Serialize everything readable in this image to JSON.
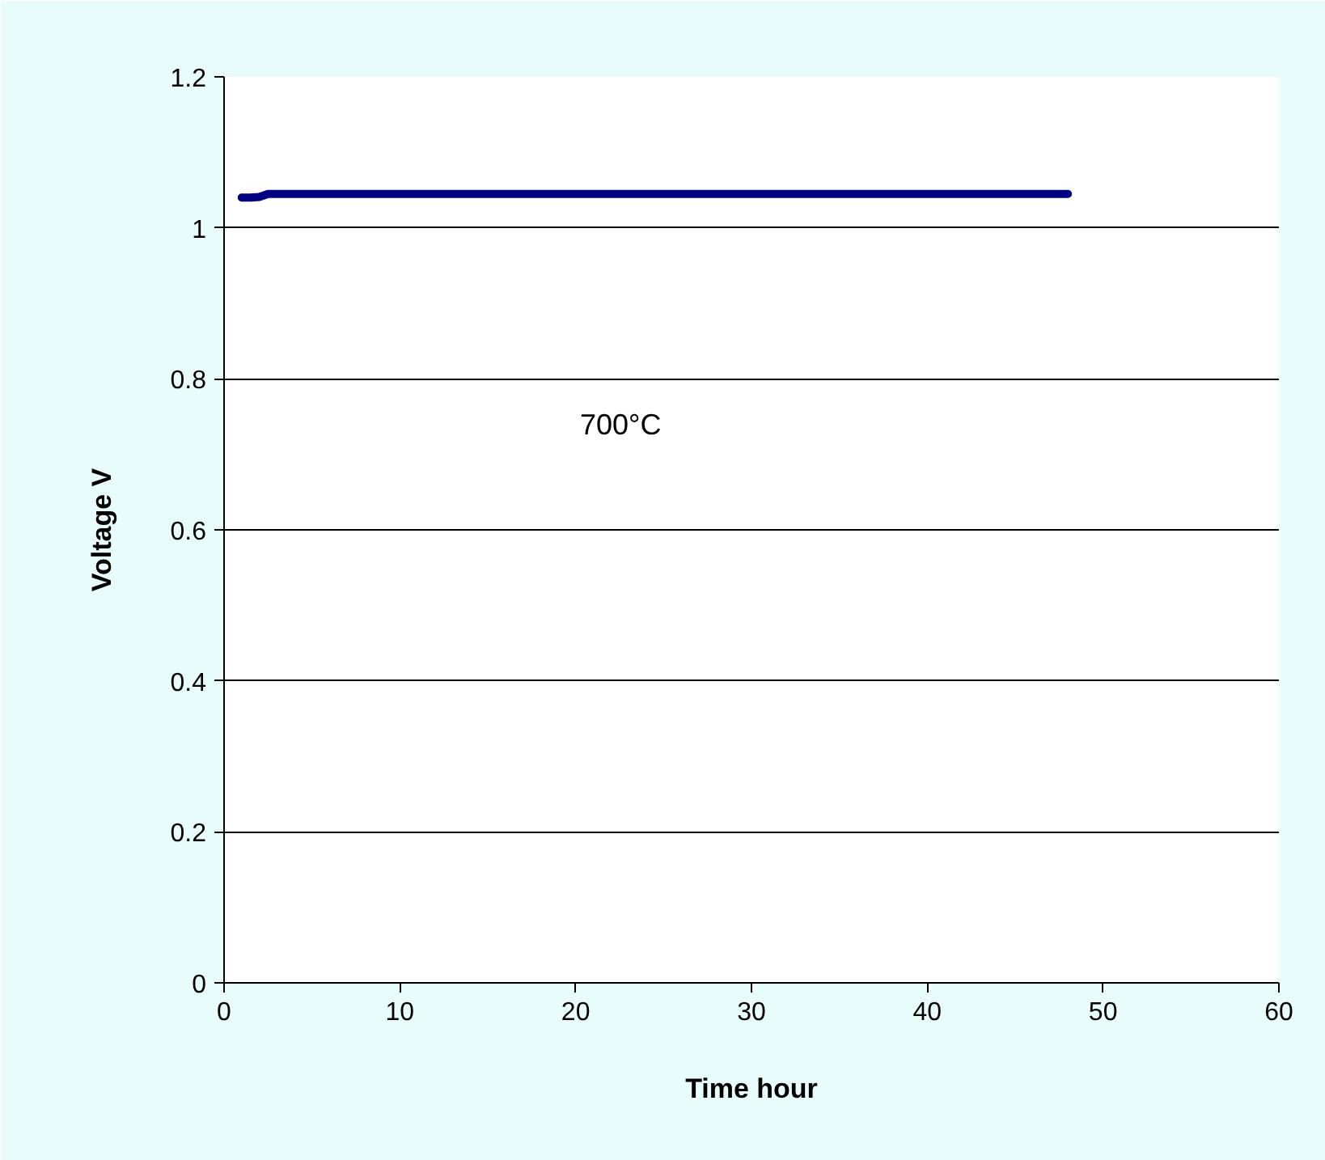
{
  "chart_data": {
    "type": "line",
    "xlabel": "Time hour",
    "ylabel": "Voltage V",
    "annotations": [
      "700°C"
    ],
    "x": [
      1,
      1.5,
      2,
      2.5,
      3,
      10,
      20,
      30,
      40,
      48
    ],
    "series": [
      {
        "color": "#000080",
        "values": [
          1.04,
          1.04,
          1.041,
          1.045,
          1.045,
          1.045,
          1.045,
          1.045,
          1.045,
          1.045
        ]
      }
    ],
    "xlim": [
      0,
      60
    ],
    "xticks": [
      0,
      10,
      20,
      30,
      40,
      50,
      60
    ],
    "ylim": [
      0,
      1.2
    ],
    "yticks": [
      0,
      0.2,
      0.4,
      0.6,
      0.8,
      1,
      1.2
    ],
    "grid": "y",
    "marker": "none",
    "line_style": "solid"
  }
}
